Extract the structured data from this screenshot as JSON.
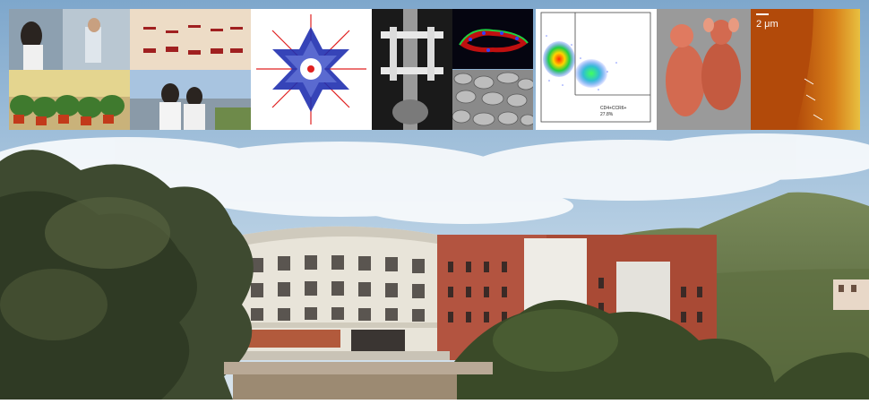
{
  "header_strip": {
    "panels": [
      {
        "id": "lab-work",
        "type": "photo"
      },
      {
        "id": "gel-electrophoresis",
        "type": "photo"
      },
      {
        "id": "greenhouse-researchers",
        "type": "photo"
      },
      {
        "id": "protein-structure",
        "type": "illustration"
      },
      {
        "id": "xray-fixator",
        "type": "image"
      },
      {
        "id": "fluorescence-tissue",
        "type": "image"
      },
      {
        "id": "sem-surface",
        "type": "image"
      },
      {
        "id": "flow-cytometry",
        "type": "plot",
        "gate_label": "CD4+CCR6+",
        "gate_value": "27.8%"
      },
      {
        "id": "mice",
        "type": "photo"
      },
      {
        "id": "afm-surface",
        "type": "image",
        "scale_bar": "2 μm"
      }
    ]
  },
  "background": {
    "subject": "research-building-on-hillside",
    "sky_color": "#9fc1dd",
    "facade_color": "#a94a35",
    "rotunda_color": "#e8e4d9"
  }
}
